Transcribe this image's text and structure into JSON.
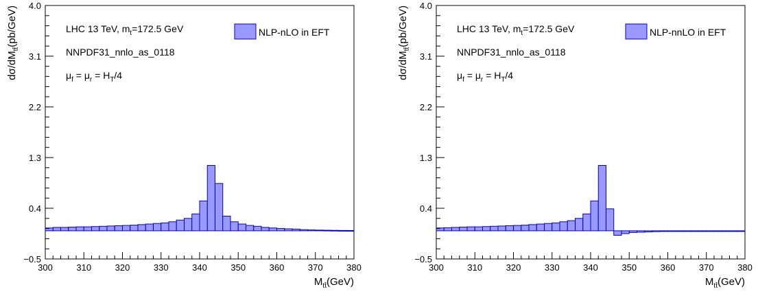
{
  "chart_data": [
    {
      "type": "bar",
      "histogram": true,
      "ylabel": {
        "main": "dσ/dM",
        "sub": "tt̄",
        "tail": "(pb/GeV)"
      },
      "xlabel": {
        "main": "M",
        "sub": "tt̄",
        "tail": "(GeV)"
      },
      "xlim": [
        300,
        380
      ],
      "ylim": [
        -0.5,
        4.0
      ],
      "xticks": [
        300,
        310,
        320,
        330,
        340,
        350,
        360,
        370,
        380
      ],
      "yticks": [
        "−0.5",
        "0.4",
        "1.3",
        "2.2",
        "3.1",
        "4.0"
      ],
      "ytick_values": [
        -0.5,
        0.4,
        1.3,
        2.2,
        3.1,
        4.0
      ],
      "annotations": {
        "line1": {
          "a": "LHC 13 TeV, m",
          "sub": "t",
          "b": "=172.5 GeV"
        },
        "line2": "NNPDF31_nnlo_as_0118",
        "line3": {
          "a": "μ",
          "s1": "f",
          "b": " = μ",
          "s2": "r",
          "c": " = H",
          "s3": "T",
          "d": "/4"
        }
      },
      "legend": "NLP-nLO in EFT",
      "legend_position": "top-right",
      "bin_width": 2,
      "x": [
        300,
        302,
        304,
        306,
        308,
        310,
        312,
        314,
        316,
        318,
        320,
        322,
        324,
        326,
        328,
        330,
        332,
        334,
        336,
        338,
        340,
        342,
        344,
        346,
        348,
        350,
        352,
        354,
        356,
        358,
        360,
        362,
        364,
        366,
        368,
        370,
        372,
        374,
        376,
        378
      ],
      "values": [
        0.05,
        0.06,
        0.06,
        0.065,
        0.07,
        0.07,
        0.075,
        0.08,
        0.085,
        0.09,
        0.095,
        0.1,
        0.11,
        0.12,
        0.13,
        0.14,
        0.16,
        0.19,
        0.22,
        0.3,
        0.53,
        1.16,
        0.84,
        0.26,
        0.16,
        0.12,
        0.095,
        0.08,
        0.06,
        0.05,
        0.04,
        0.035,
        0.03,
        0.02,
        0.015,
        0.012,
        0.01,
        0.008,
        0.006,
        0.005
      ],
      "colors": {
        "fill": "#9999ff",
        "stroke": "#0000cc"
      }
    },
    {
      "type": "bar",
      "histogram": true,
      "ylabel": {
        "main": "dσ/dM",
        "sub": "tt̄",
        "tail": "(pb/GeV)"
      },
      "xlabel": {
        "main": "M",
        "sub": "tt̄",
        "tail": "(GeV)"
      },
      "xlim": [
        300,
        380
      ],
      "ylim": [
        -0.5,
        4.0
      ],
      "xticks": [
        300,
        310,
        320,
        330,
        340,
        350,
        360,
        370,
        380
      ],
      "yticks": [
        "−0.5",
        "0.4",
        "1.3",
        "2.2",
        "3.1",
        "4.0"
      ],
      "ytick_values": [
        -0.5,
        0.4,
        1.3,
        2.2,
        3.1,
        4.0
      ],
      "annotations": {
        "line1": {
          "a": "LHC 13 TeV, m",
          "sub": "t",
          "b": "=172.5 GeV"
        },
        "line2": "NNPDF31_nnlo_as_0118",
        "line3": {
          "a": "μ",
          "s1": "f",
          "b": " = μ",
          "s2": "r",
          "c": " = H",
          "s3": "T",
          "d": "/4"
        }
      },
      "legend": "NLP-nnLO in EFT",
      "legend_position": "top-right",
      "bin_width": 2,
      "x": [
        300,
        302,
        304,
        306,
        308,
        310,
        312,
        314,
        316,
        318,
        320,
        322,
        324,
        326,
        328,
        330,
        332,
        334,
        336,
        338,
        340,
        342,
        344,
        346,
        348,
        350,
        352,
        354,
        356,
        358,
        360,
        362,
        364,
        366,
        368,
        370,
        372,
        374,
        376,
        378
      ],
      "values": [
        0.05,
        0.055,
        0.06,
        0.065,
        0.07,
        0.07,
        0.075,
        0.08,
        0.085,
        0.09,
        0.095,
        0.1,
        0.11,
        0.12,
        0.13,
        0.14,
        0.16,
        0.18,
        0.22,
        0.3,
        0.53,
        1.16,
        0.39,
        -0.08,
        -0.05,
        -0.03,
        -0.025,
        -0.02,
        -0.015,
        -0.012,
        -0.01,
        -0.008,
        -0.006,
        -0.005,
        -0.004,
        -0.003,
        -0.002,
        -0.002,
        -0.001,
        0.0
      ],
      "colors": {
        "fill": "#9999ff",
        "stroke": "#0000cc"
      }
    }
  ]
}
